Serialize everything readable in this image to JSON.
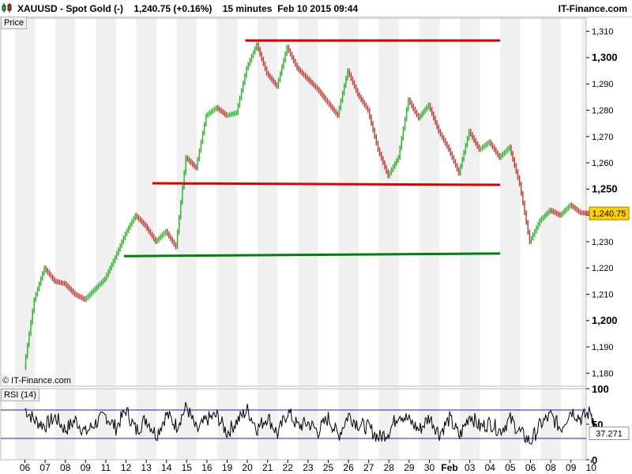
{
  "header": {
    "title": "XAUUSD - Spot Gold (-)    1,240.75 (+0.16%)    15 minutes  Feb 10 2015 09:44",
    "brand": "IT-Finance.com",
    "icon": "candlestick-icon"
  },
  "panels": {
    "price_label": "Price",
    "rsi_label": "RSI (14)",
    "watermark": "© IT-Finance.com"
  },
  "colors": {
    "resistance": "#e00000",
    "support": "#00800b",
    "up": "#2db62d",
    "down": "#c83232",
    "band": "#f0f0f0",
    "rsi_line": "#000000",
    "rsi_levels": "#2020a0"
  },
  "chart_data": [
    {
      "type": "line",
      "title": "XAUUSD - Spot Gold (-)",
      "ylabel": "Price",
      "ylim": [
        1175,
        1315
      ],
      "yticks": [
        1180,
        1190,
        1200,
        1210,
        1220,
        1230,
        1240,
        1250,
        1260,
        1270,
        1280,
        1290,
        1300,
        1310
      ],
      "ytick_labels": [
        "1,180",
        "1,190",
        "1,200",
        "1,210",
        "1,220",
        "1,230",
        "1,240",
        "1,250",
        "1,260",
        "1,270",
        "1,280",
        "1,290",
        "1,300",
        "1,310"
      ],
      "x_labels": [
        "06",
        "07",
        "08",
        "09",
        "11",
        "12",
        "13",
        "14",
        "15",
        "16",
        "19",
        "20",
        "21",
        "22",
        "23",
        "25",
        "26",
        "27",
        "28",
        "29",
        "30",
        "Feb",
        "03",
        "04",
        "05",
        "06",
        "08",
        "09",
        "10"
      ],
      "x": [
        0,
        0.5,
        1,
        1.5,
        2,
        2.5,
        3,
        3.5,
        4,
        4.5,
        5,
        5.5,
        6,
        6.5,
        7,
        7.5,
        8,
        8.5,
        9,
        9.5,
        10,
        10.5,
        11,
        11.5,
        12,
        12.5,
        13,
        13.5,
        14,
        14.5,
        15,
        15.5,
        16,
        16.5,
        17,
        17.5,
        18,
        18.5,
        19,
        19.5,
        20,
        20.5,
        21,
        21.5,
        22,
        22.5,
        23,
        23.5,
        24,
        24.5,
        25,
        25.5,
        26,
        26.5,
        27,
        27.5,
        28,
        28.2
      ],
      "series": [
        {
          "values": [
            1182,
            1208,
            1220,
            1215,
            1214,
            1210,
            1208,
            1212,
            1216,
            1224,
            1233,
            1240,
            1236,
            1230,
            1234,
            1228,
            1262,
            1258,
            1278,
            1281,
            1278,
            1279,
            1296,
            1305,
            1294,
            1289,
            1304,
            1296,
            1292,
            1288,
            1283,
            1278,
            1295,
            1286,
            1280,
            1265,
            1255,
            1262,
            1284,
            1277,
            1282,
            1272,
            1265,
            1256,
            1272,
            1265,
            1268,
            1262,
            1266,
            1252,
            1230,
            1238,
            1242,
            1240,
            1244,
            1241,
            1240.75,
            1240.75
          ]
        }
      ],
      "last_value_label": "1,240.75",
      "annotations": [
        {
          "type": "resistance",
          "color": "red",
          "x": [
            10.9,
            23.5
          ],
          "y": [
            1306.5,
            1306.5
          ]
        },
        {
          "type": "resistance",
          "color": "red",
          "x": [
            6.3,
            23.5
          ],
          "y": [
            1252.2,
            1251.6
          ]
        },
        {
          "type": "support",
          "color": "green",
          "x": [
            4.9,
            23.5
          ],
          "y": [
            1224.5,
            1225.5
          ]
        }
      ]
    },
    {
      "type": "line",
      "title": "RSI (14)",
      "ylim": [
        0,
        100
      ],
      "yticks": [
        0,
        50,
        100
      ],
      "ytick_labels": [
        "0",
        "50",
        "100"
      ],
      "levels": [
        70,
        30
      ],
      "last_value": 37.271,
      "last_value_label": "37.271",
      "x": [
        0,
        0.5,
        1,
        1.5,
        2,
        2.5,
        3,
        3.5,
        4,
        4.5,
        5,
        5.5,
        6,
        6.5,
        7,
        7.5,
        8,
        8.5,
        9,
        9.5,
        10,
        10.5,
        11,
        11.5,
        12,
        12.5,
        13,
        13.5,
        14,
        14.5,
        15,
        15.5,
        16,
        16.5,
        17,
        17.5,
        18,
        18.5,
        19,
        19.5,
        20,
        20.5,
        21,
        21.5,
        22,
        22.5,
        23,
        23.5,
        24,
        24.5,
        25,
        25.5,
        26,
        26.5,
        27,
        27.5,
        28,
        28.2
      ],
      "series": [
        {
          "values": [
            72,
            55,
            48,
            60,
            42,
            56,
            38,
            52,
            62,
            45,
            70,
            41,
            58,
            35,
            64,
            48,
            75,
            40,
            57,
            62,
            38,
            55,
            70,
            44,
            61,
            36,
            68,
            47,
            52,
            40,
            59,
            34,
            63,
            50,
            45,
            31,
            40,
            66,
            55,
            42,
            60,
            37,
            58,
            33,
            64,
            46,
            52,
            41,
            57,
            38,
            25,
            50,
            62,
            44,
            70,
            58,
            68,
            37.271
          ]
        }
      ]
    }
  ]
}
